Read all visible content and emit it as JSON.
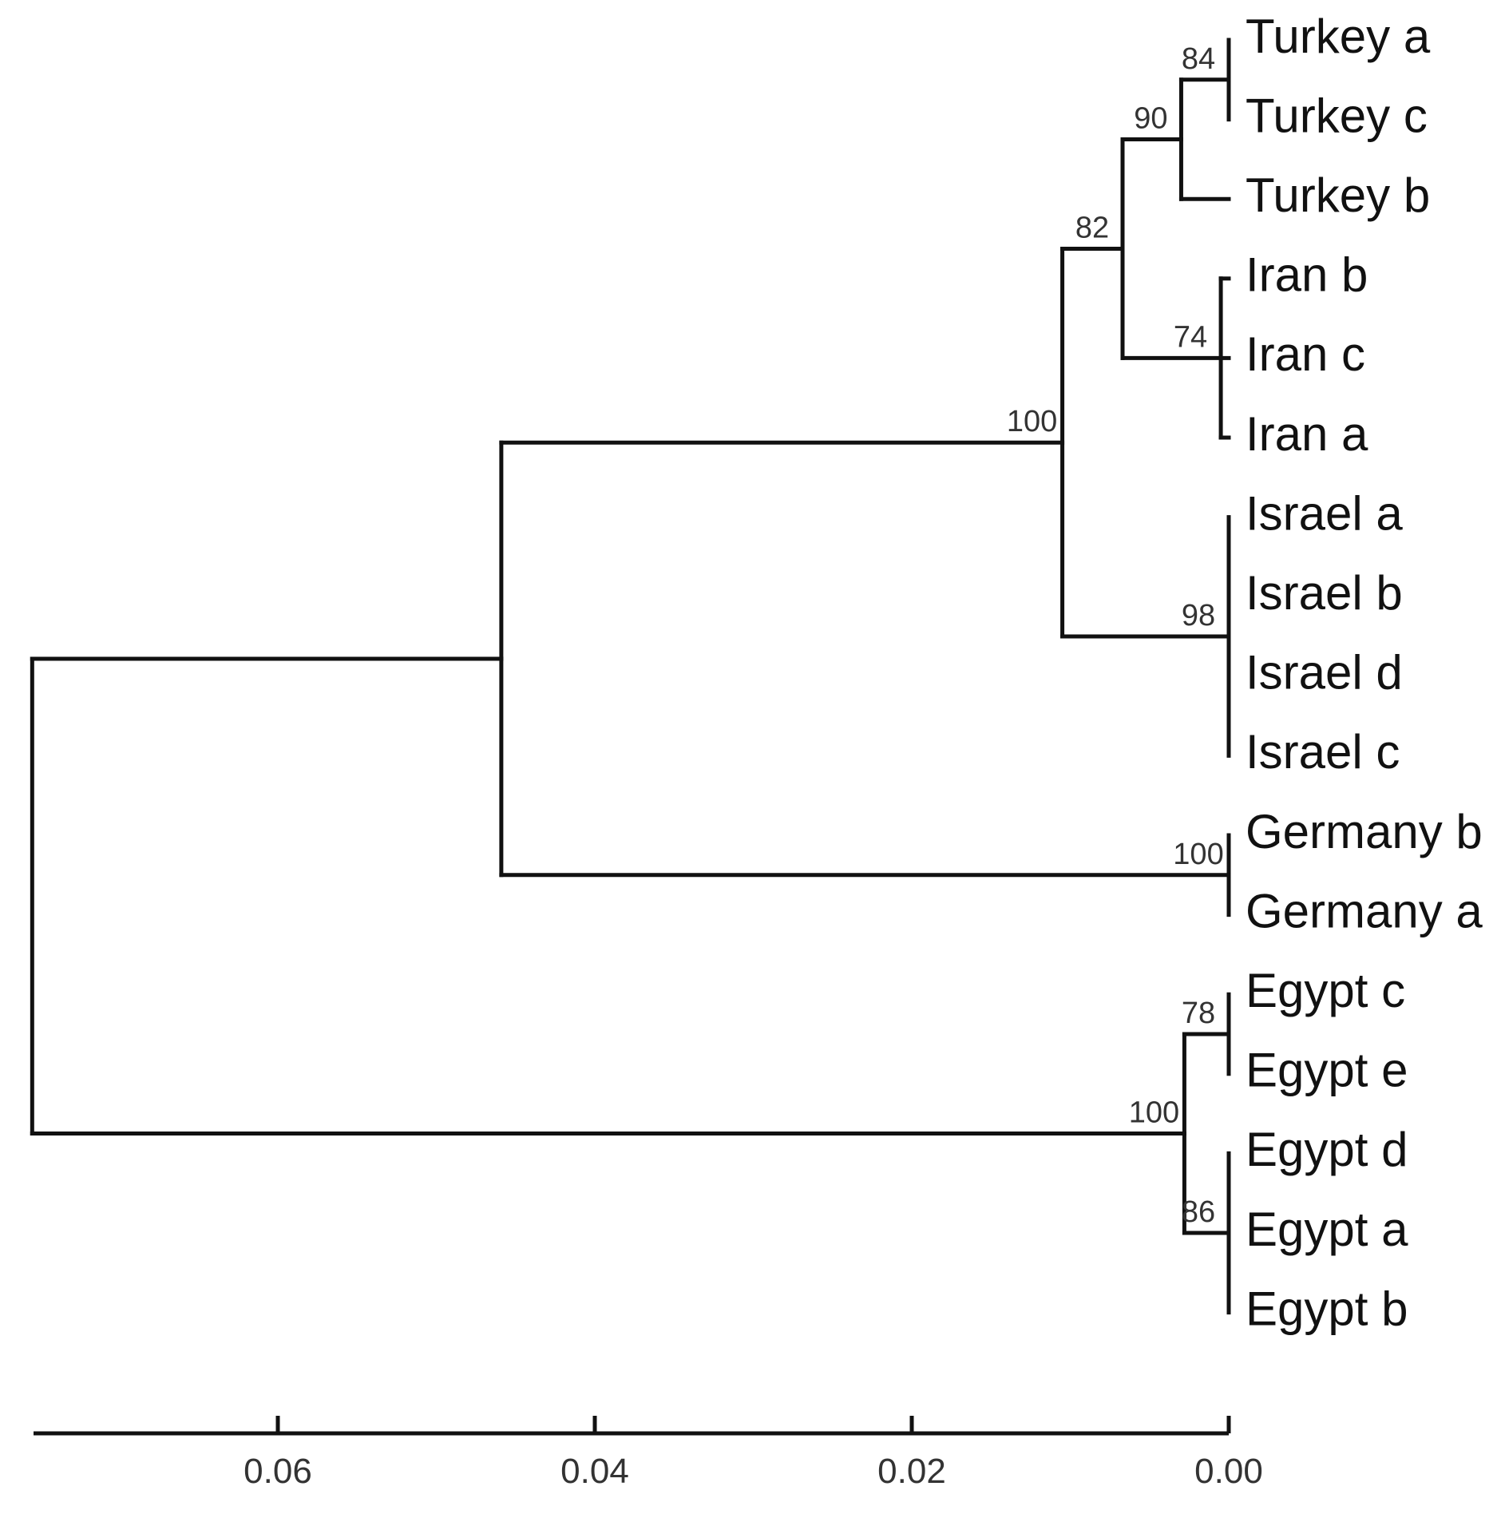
{
  "chart_data": {
    "type": "dendrogram",
    "leaves": [
      "Turkey a",
      "Turkey c",
      "Turkey b",
      "Iran b",
      "Iran c",
      "Iran a",
      "Israel a",
      "Israel b",
      "Israel d",
      "Israel c",
      "Germany b",
      "Germany a",
      "Egypt c",
      "Egypt e",
      "Egypt d",
      "Egypt a",
      "Egypt b"
    ],
    "nodes": [
      {
        "id": "turkey_ac",
        "height": 0.0,
        "children": [
          "Turkey a",
          "Turkey c"
        ],
        "support": "84"
      },
      {
        "id": "turkey",
        "height": 0.003,
        "children": [
          "turkey_ac",
          "Turkey b"
        ],
        "support": "90"
      },
      {
        "id": "iran",
        "height": 0.0005,
        "children": [
          "Iran b",
          "Iran c",
          "Iran a"
        ],
        "support": "74"
      },
      {
        "id": "turkey_iran",
        "height": 0.0067,
        "children": [
          "turkey",
          "iran"
        ],
        "support": "82"
      },
      {
        "id": "israel",
        "height": 0.0,
        "children": [
          "Israel a",
          "Israel b",
          "Israel d",
          "Israel c"
        ],
        "support": "98"
      },
      {
        "id": "mideast",
        "height": 0.0105,
        "children": [
          "turkey_iran",
          "israel"
        ],
        "support": "100"
      },
      {
        "id": "germany",
        "height": 0.0,
        "children": [
          "Germany b",
          "Germany a"
        ],
        "support": "100"
      },
      {
        "id": "north",
        "height": 0.0459,
        "children": [
          "mideast",
          "germany"
        ],
        "support": ""
      },
      {
        "id": "egypt_ce",
        "height": 0.0,
        "children": [
          "Egypt c",
          "Egypt e"
        ],
        "support": "78"
      },
      {
        "id": "egypt_dab",
        "height": 0.0,
        "children": [
          "Egypt d",
          "Egypt a",
          "Egypt b"
        ],
        "support": "86"
      },
      {
        "id": "egypt",
        "height": 0.0028,
        "children": [
          "egypt_ce",
          "egypt_dab"
        ],
        "support": "100"
      },
      {
        "id": "root",
        "height": 0.0755,
        "children": [
          "north",
          "egypt"
        ],
        "support": ""
      }
    ],
    "x_axis": {
      "ticks": [
        0.06,
        0.04,
        0.02,
        0.0
      ],
      "tick_labels": [
        "0.06",
        "0.04",
        "0.02",
        "0.00"
      ],
      "range": [
        0.0755,
        0.0
      ],
      "reversed": true
    },
    "title": "",
    "xlabel": "",
    "ylabel": ""
  }
}
